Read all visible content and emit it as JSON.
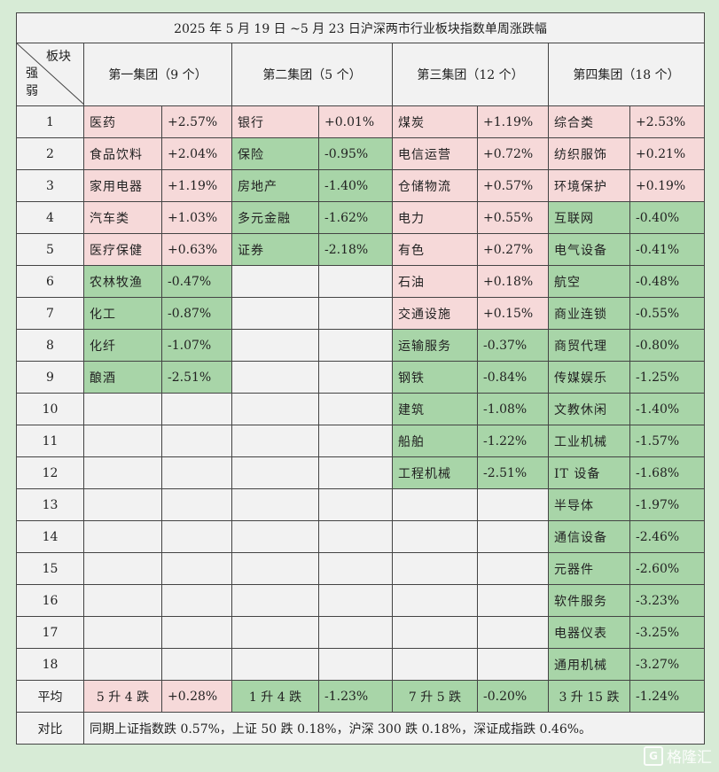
{
  "title": "2025 年 5 月 19 日 ~5 月 23 日沪深两市行业板块指数单周涨跌幅",
  "corner": {
    "top": "板块",
    "bottom_1": "强",
    "bottom_2": "弱"
  },
  "groups": [
    {
      "header": "第一集团（9 个）",
      "items": [
        {
          "name": "医药",
          "pct": "+2.57%",
          "status": "up"
        },
        {
          "name": "食品饮料",
          "pct": "+2.04%",
          "status": "up"
        },
        {
          "name": "家用电器",
          "pct": "+1.19%",
          "status": "up"
        },
        {
          "name": "汽车类",
          "pct": "+1.03%",
          "status": "up"
        },
        {
          "name": "医疗保健",
          "pct": "+0.63%",
          "status": "up"
        },
        {
          "name": "农林牧渔",
          "pct": "-0.47%",
          "status": "down"
        },
        {
          "name": "化工",
          "pct": "-0.87%",
          "status": "down"
        },
        {
          "name": "化纤",
          "pct": "-1.07%",
          "status": "down"
        },
        {
          "name": "酿酒",
          "pct": "-2.51%",
          "status": "down"
        }
      ],
      "avg_count": "5 升 4 跌",
      "avg_pct": "+0.28%",
      "avg_status": "up"
    },
    {
      "header": "第二集团（5 个）",
      "items": [
        {
          "name": "银行",
          "pct": "+0.01%",
          "status": "up"
        },
        {
          "name": "保险",
          "pct": "-0.95%",
          "status": "down"
        },
        {
          "name": "房地产",
          "pct": "-1.40%",
          "status": "down"
        },
        {
          "name": "多元金融",
          "pct": "-1.62%",
          "status": "down"
        },
        {
          "name": "证券",
          "pct": "-2.18%",
          "status": "down"
        }
      ],
      "avg_count": "1 升 4 跌",
      "avg_pct": "-1.23%",
      "avg_status": "down"
    },
    {
      "header": "第三集团（12 个）",
      "items": [
        {
          "name": "煤炭",
          "pct": "+1.19%",
          "status": "up"
        },
        {
          "name": "电信运营",
          "pct": "+0.72%",
          "status": "up"
        },
        {
          "name": "仓储物流",
          "pct": "+0.57%",
          "status": "up"
        },
        {
          "name": "电力",
          "pct": "+0.55%",
          "status": "up"
        },
        {
          "name": "有色",
          "pct": "+0.27%",
          "status": "up"
        },
        {
          "name": "石油",
          "pct": "+0.18%",
          "status": "up"
        },
        {
          "name": "交通设施",
          "pct": "+0.15%",
          "status": "up"
        },
        {
          "name": "运输服务",
          "pct": "-0.37%",
          "status": "down"
        },
        {
          "name": "钢铁",
          "pct": "-0.84%",
          "status": "down"
        },
        {
          "name": "建筑",
          "pct": "-1.08%",
          "status": "down"
        },
        {
          "name": "船舶",
          "pct": "-1.22%",
          "status": "down"
        },
        {
          "name": "工程机械",
          "pct": "-2.51%",
          "status": "down"
        }
      ],
      "avg_count": "7 升 5 跌",
      "avg_pct": "-0.20%",
      "avg_status": "down"
    },
    {
      "header": "第四集团（18 个）",
      "items": [
        {
          "name": "综合类",
          "pct": "+2.53%",
          "status": "up"
        },
        {
          "name": "纺织服饰",
          "pct": "+0.21%",
          "status": "up"
        },
        {
          "name": "环境保护",
          "pct": "+0.19%",
          "status": "up"
        },
        {
          "name": "互联网",
          "pct": "-0.40%",
          "status": "down"
        },
        {
          "name": "电气设备",
          "pct": "-0.41%",
          "status": "down"
        },
        {
          "name": "航空",
          "pct": "-0.48%",
          "status": "down"
        },
        {
          "name": "商业连锁",
          "pct": "-0.55%",
          "status": "down"
        },
        {
          "name": "商贸代理",
          "pct": "-0.80%",
          "status": "down"
        },
        {
          "name": "传媒娱乐",
          "pct": "-1.25%",
          "status": "down"
        },
        {
          "name": "文教休闲",
          "pct": "-1.40%",
          "status": "down"
        },
        {
          "name": "工业机械",
          "pct": "-1.57%",
          "status": "down"
        },
        {
          "name": "IT 设备",
          "pct": "-1.68%",
          "status": "down"
        },
        {
          "name": "半导体",
          "pct": "-1.97%",
          "status": "down"
        },
        {
          "name": "通信设备",
          "pct": "-2.46%",
          "status": "down"
        },
        {
          "name": "元器件",
          "pct": "-2.60%",
          "status": "down"
        },
        {
          "name": "软件服务",
          "pct": "-3.23%",
          "status": "down"
        },
        {
          "name": "电器仪表",
          "pct": "-3.25%",
          "status": "down"
        },
        {
          "name": "通用机械",
          "pct": "-3.27%",
          "status": "down"
        }
      ],
      "avg_count": "3 升 15 跌",
      "avg_pct": "-1.24%",
      "avg_status": "down"
    }
  ],
  "ranks": [
    "1",
    "2",
    "3",
    "4",
    "5",
    "6",
    "7",
    "8",
    "9",
    "10",
    "11",
    "12",
    "13",
    "14",
    "15",
    "16",
    "17",
    "18"
  ],
  "avg_label": "平均",
  "compare_label": "对比",
  "compare_text": "同期上证指数跌 0.57%，上证 50 跌 0.18%，沪深 300 跌 0.18%，深证成指跌 0.46%。",
  "colors": {
    "up": "#f6d9d9",
    "down": "#a8d5a8",
    "background": "#d7ebd6"
  },
  "watermark": {
    "icon": "G",
    "text": "格隆汇"
  }
}
